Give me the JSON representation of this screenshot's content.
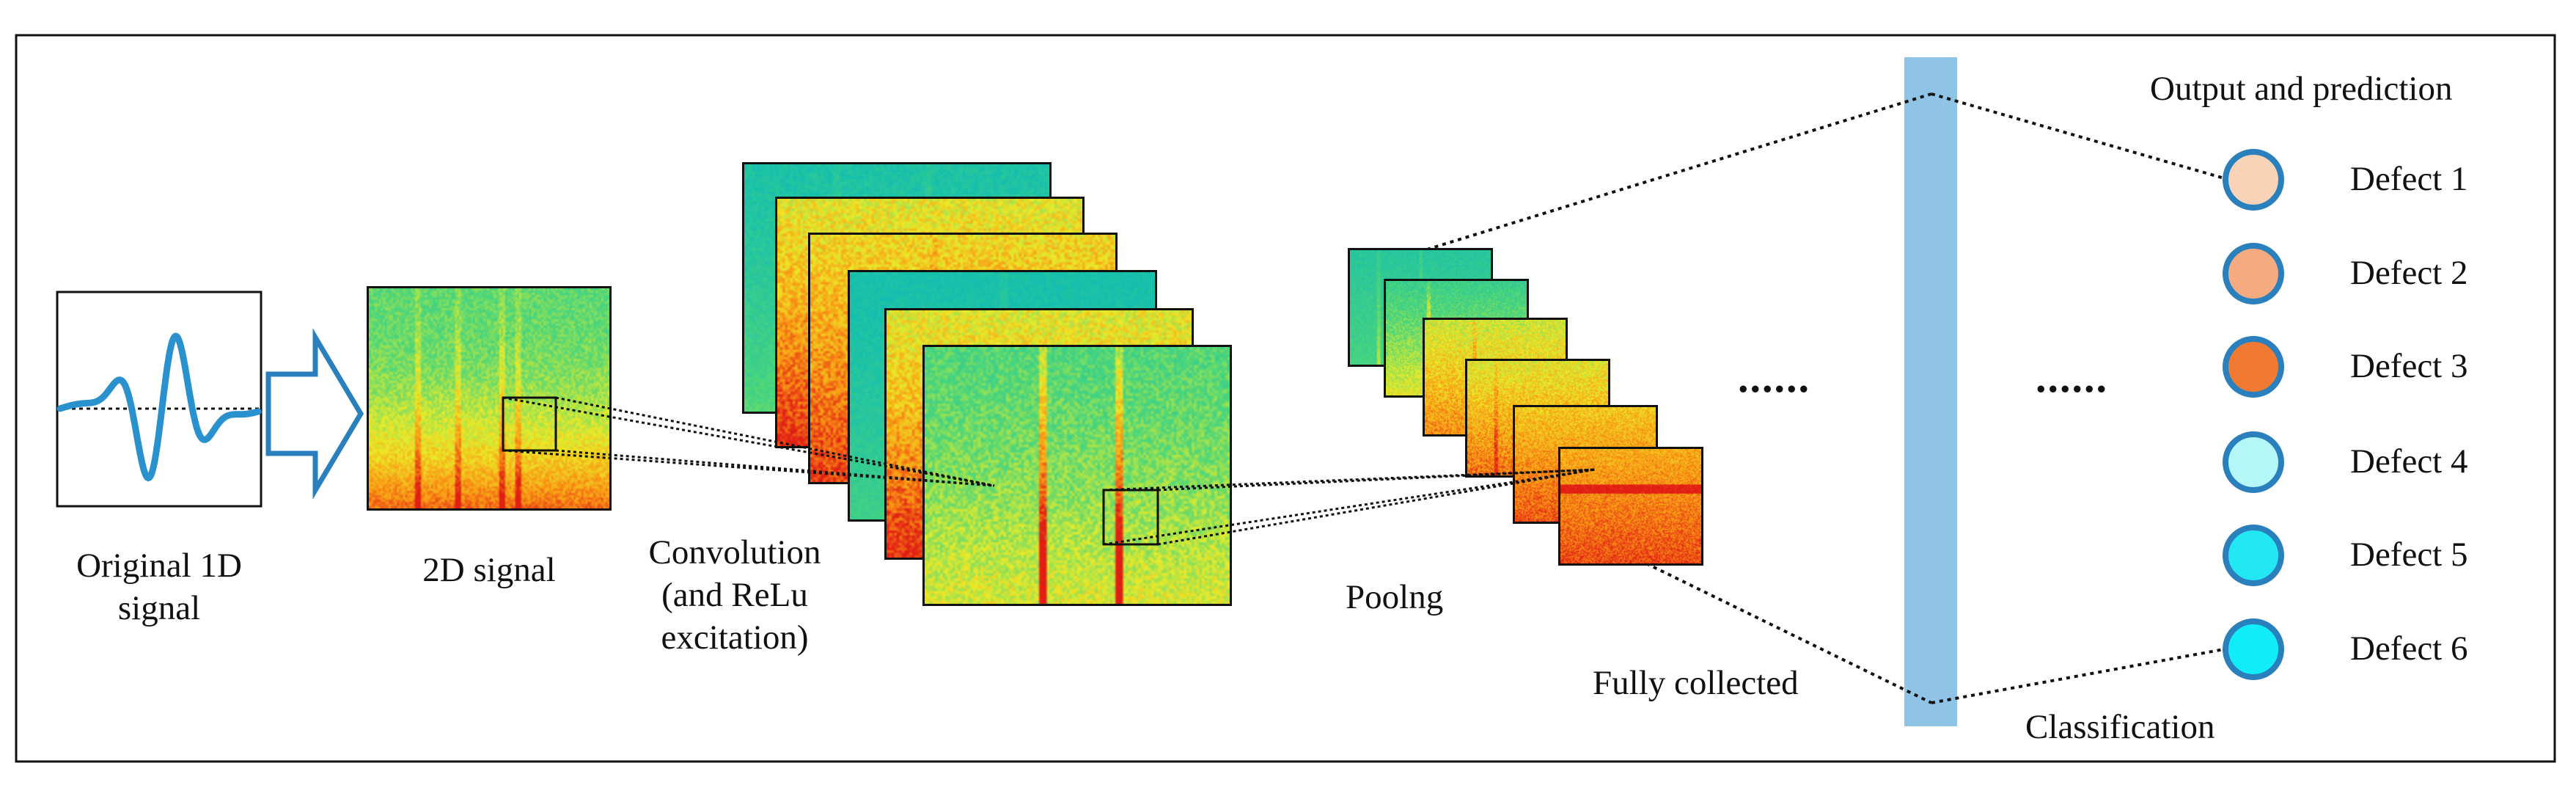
{
  "labels": {
    "original_1d": "Original 1D",
    "signal": "signal",
    "signal_2d": "2D signal",
    "convolution": "Convolution",
    "and_relu": "(and ReLu",
    "excitation": "excitation)",
    "pooling": "Poolng",
    "fully_collected": "Fully collected",
    "classification": "Classification",
    "output_title": "Output and prediction",
    "ellipsis_1": "......",
    "ellipsis_2": "......"
  },
  "outputs": [
    {
      "label": "Defect 1",
      "color": "#f9d3b7"
    },
    {
      "label": "Defect 2",
      "color": "#f6aa80"
    },
    {
      "label": "Defect 3",
      "color": "#f07a32"
    },
    {
      "label": "Defect 4",
      "color": "#b5f6f9"
    },
    {
      "label": "Defect 5",
      "color": "#22e8f4"
    },
    {
      "label": "Defect 6",
      "color": "#10ecf8"
    }
  ],
  "colors": {
    "border": "#111111",
    "wave": "#2a91cf",
    "arrow": "#2a7fbd",
    "fc_bar": "#90c4e6",
    "node_ring": "#2a7fbd"
  }
}
